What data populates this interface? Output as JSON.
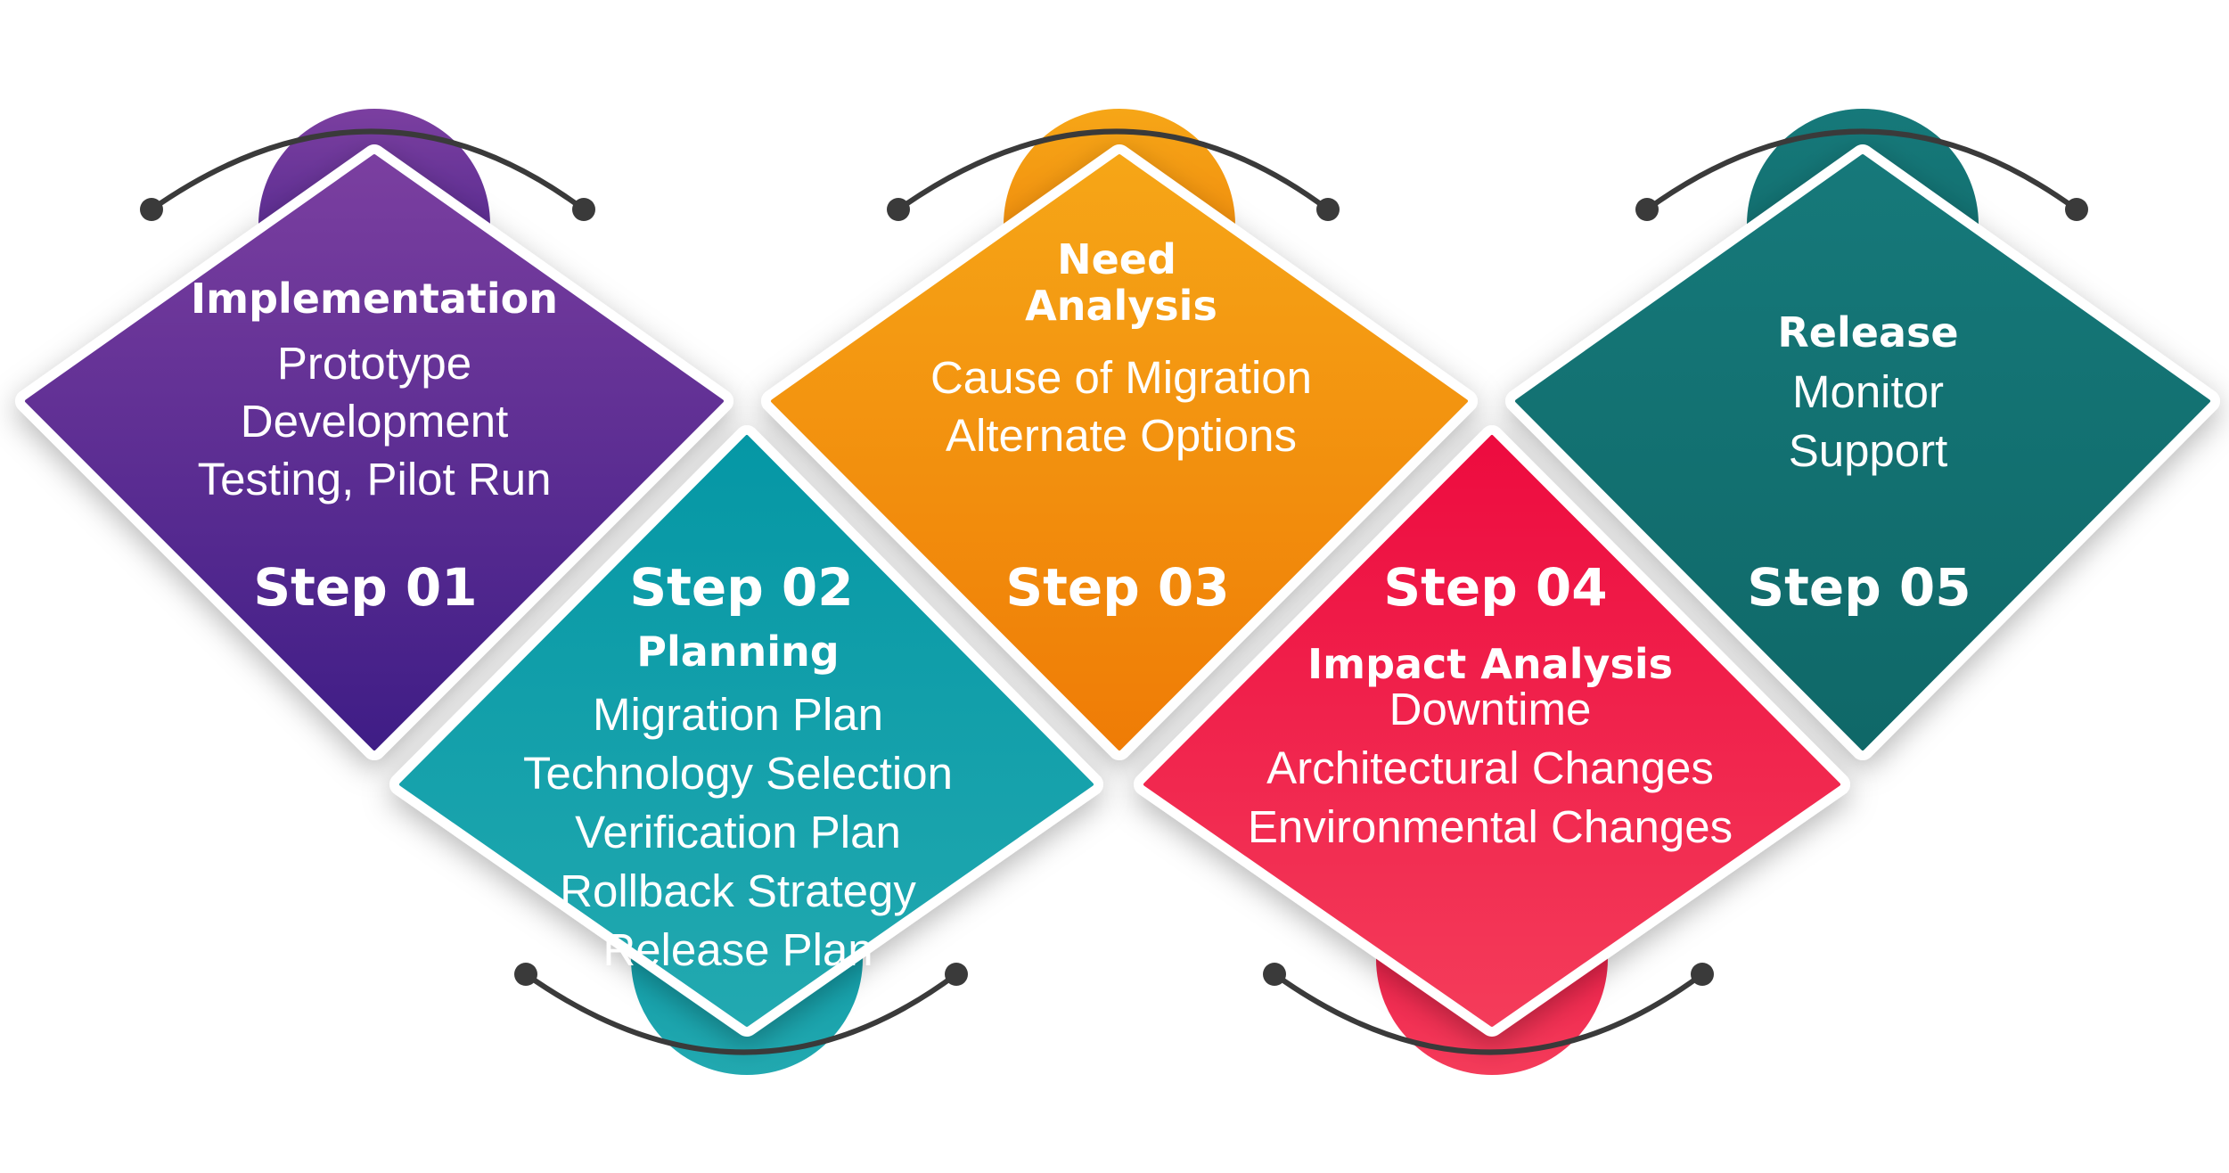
{
  "steps": [
    {
      "step_label": "Step 01",
      "title": "Implementation",
      "items": [
        "Prototype",
        "Development",
        "Testing, Pilot Run"
      ],
      "color_top": "#7B3FA0",
      "color_bottom": "#3F1D86"
    },
    {
      "step_label": "Step 02",
      "title": "Planning",
      "items": [
        "Migration Plan",
        "Technology Selection",
        "Verification Plan",
        "Rollback Strategy",
        "Release Plan"
      ],
      "color_top": "#0597A5",
      "color_bottom": "#22A9B0"
    },
    {
      "step_label": "Step 03",
      "title_lines": [
        "Need",
        "Analysis"
      ],
      "items": [
        "Cause of Migration",
        "Alternate Options"
      ],
      "color_top": "#F6A617",
      "color_bottom": "#EF7C06"
    },
    {
      "step_label": "Step 04",
      "title": "Impact Analysis",
      "items": [
        "Downtime",
        "Architectural Changes",
        "Environmental Changes"
      ],
      "color_top": "#ED0B3F",
      "color_bottom": "#F43C5A"
    },
    {
      "step_label": "Step 05",
      "title": "Release",
      "items": [
        "Monitor",
        "Support"
      ],
      "color_top": "#16797A",
      "color_bottom": "#0F6868"
    }
  ]
}
